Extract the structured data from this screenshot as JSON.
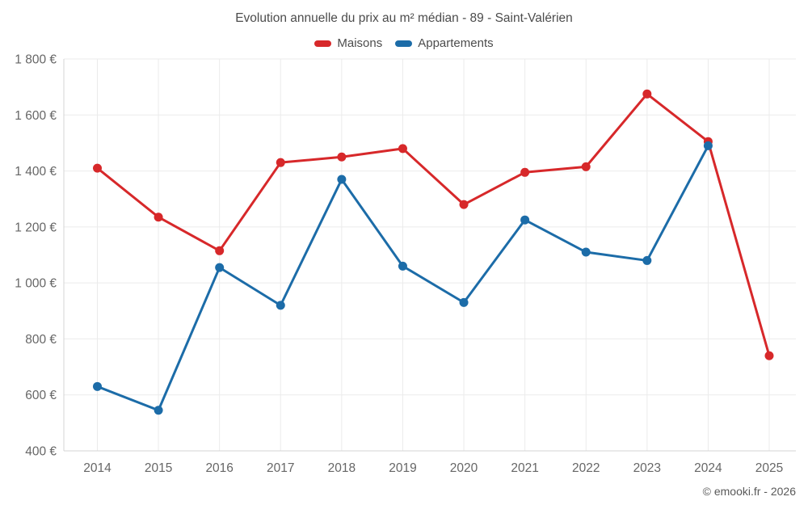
{
  "chart": {
    "title": "Evolution annuelle du prix au m² médian - 89 - Saint-Valérien"
  },
  "footer": {
    "copyright": "© emooki.fr - 2026"
  },
  "chart_data": {
    "type": "line",
    "title": "Evolution annuelle du prix au m² médian - 89 - Saint-Valérien",
    "categories": [
      "2014",
      "2015",
      "2016",
      "2017",
      "2018",
      "2019",
      "2020",
      "2021",
      "2022",
      "2023",
      "2024",
      "2025"
    ],
    "series": [
      {
        "name": "Maisons",
        "color": "#d7282a",
        "values": [
          1410,
          1235,
          1115,
          1430,
          1450,
          1480,
          1280,
          1395,
          1415,
          1675,
          1505,
          740
        ]
      },
      {
        "name": "Appartements",
        "color": "#1c6ca8",
        "values": [
          630,
          545,
          1055,
          920,
          1370,
          1060,
          930,
          1225,
          1110,
          1080,
          1490,
          null
        ]
      }
    ],
    "xlabel": "",
    "ylabel": "",
    "ylim": [
      400,
      1800
    ],
    "y_tick_step": 200,
    "y_tick_suffix": " €",
    "grid": true,
    "legend_position": "top",
    "colors": {
      "grid_line": "#ebebeb",
      "axis_line": "#d4d4d4",
      "tick_text": "#666666"
    }
  }
}
